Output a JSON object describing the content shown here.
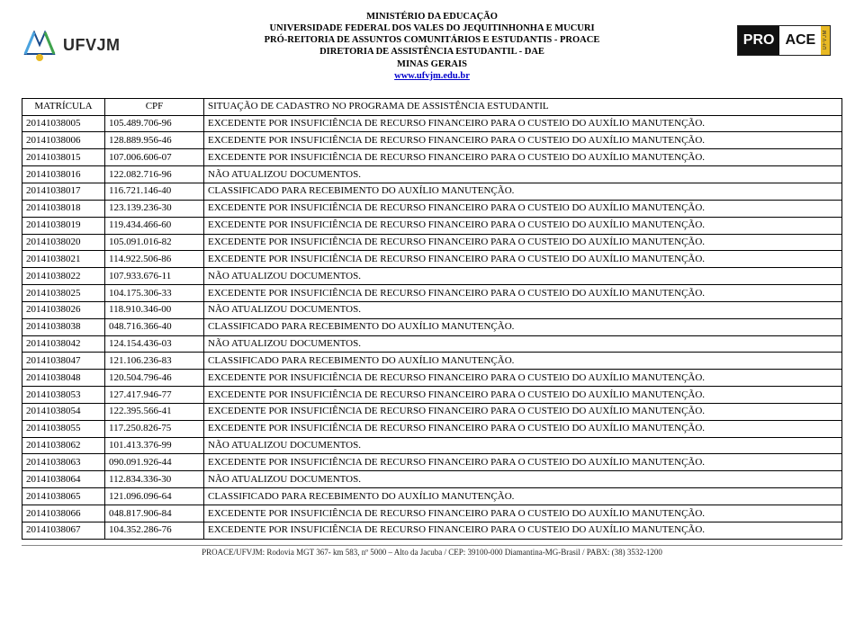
{
  "header": {
    "lines": [
      "MINISTÉRIO DA EDUCAÇÃO",
      "UNIVERSIDADE FEDERAL DOS VALES DO JEQUITINHONHA E MUCURI",
      "PRÓ-REITORIA DE ASSUNTOS COMUNITÁRIOS E ESTUDANTIS - PROACE",
      "DIRETORIA DE ASSISTÊNCIA ESTUDANTIL - DAE",
      "MINAS GERAIS"
    ],
    "link_text": "www.ufvjm.edu.br",
    "logo_left_text": "UFVJM",
    "logo_right_pro": "PRO",
    "logo_right_ace": "ACE",
    "logo_right_bar": "UFVJM"
  },
  "table": {
    "columns": [
      "MATRÍCULA",
      "CPF",
      "SITUAÇÃO DE CADASTRO NO PROGRAMA DE ASSISTÊNCIA ESTUDANTIL"
    ],
    "rows": [
      [
        "20141038005",
        "105.489.706-96",
        "EXCEDENTE POR INSUFICIÊNCIA DE RECURSO FINANCEIRO PARA O CUSTEIO DO AUXÍLIO MANUTENÇÃO."
      ],
      [
        "20141038006",
        "128.889.956-46",
        "EXCEDENTE POR INSUFICIÊNCIA DE RECURSO FINANCEIRO PARA O CUSTEIO DO AUXÍLIO MANUTENÇÃO."
      ],
      [
        "20141038015",
        "107.006.606-07",
        "EXCEDENTE POR INSUFICIÊNCIA DE RECURSO FINANCEIRO PARA O CUSTEIO DO AUXÍLIO MANUTENÇÃO."
      ],
      [
        "20141038016",
        "122.082.716-96",
        "NÃO ATUALIZOU DOCUMENTOS."
      ],
      [
        "20141038017",
        "116.721.146-40",
        "CLASSIFICADO PARA RECEBIMENTO DO AUXÍLIO MANUTENÇÃO."
      ],
      [
        "20141038018",
        "123.139.236-30",
        "EXCEDENTE POR INSUFICIÊNCIA DE RECURSO FINANCEIRO PARA O CUSTEIO DO AUXÍLIO MANUTENÇÃO."
      ],
      [
        "20141038019",
        "119.434.466-60",
        "EXCEDENTE POR INSUFICIÊNCIA DE RECURSO FINANCEIRO PARA O CUSTEIO DO AUXÍLIO MANUTENÇÃO."
      ],
      [
        "20141038020",
        "105.091.016-82",
        "EXCEDENTE POR INSUFICIÊNCIA DE RECURSO FINANCEIRO PARA O CUSTEIO DO AUXÍLIO MANUTENÇÃO."
      ],
      [
        "20141038021",
        "114.922.506-86",
        "EXCEDENTE POR INSUFICIÊNCIA DE RECURSO FINANCEIRO PARA O CUSTEIO DO AUXÍLIO MANUTENÇÃO."
      ],
      [
        "20141038022",
        "107.933.676-11",
        "NÃO ATUALIZOU DOCUMENTOS."
      ],
      [
        "20141038025",
        "104.175.306-33",
        "EXCEDENTE POR INSUFICIÊNCIA DE RECURSO FINANCEIRO PARA O CUSTEIO DO AUXÍLIO MANUTENÇÃO."
      ],
      [
        "20141038026",
        "118.910.346-00",
        "NÃO ATUALIZOU DOCUMENTOS."
      ],
      [
        "20141038038",
        "048.716.366-40",
        "CLASSIFICADO PARA RECEBIMENTO DO AUXÍLIO MANUTENÇÃO."
      ],
      [
        "20141038042",
        "124.154.436-03",
        "NÃO ATUALIZOU DOCUMENTOS."
      ],
      [
        "20141038047",
        "121.106.236-83",
        "CLASSIFICADO PARA RECEBIMENTO DO AUXÍLIO MANUTENÇÃO."
      ],
      [
        "20141038048",
        "120.504.796-46",
        "EXCEDENTE POR INSUFICIÊNCIA DE RECURSO FINANCEIRO PARA O CUSTEIO DO AUXÍLIO MANUTENÇÃO."
      ],
      [
        "20141038053",
        "127.417.946-77",
        "EXCEDENTE POR INSUFICIÊNCIA DE RECURSO FINANCEIRO PARA O CUSTEIO DO AUXÍLIO MANUTENÇÃO."
      ],
      [
        "20141038054",
        "122.395.566-41",
        "EXCEDENTE POR INSUFICIÊNCIA DE RECURSO FINANCEIRO PARA O CUSTEIO DO AUXÍLIO MANUTENÇÃO."
      ],
      [
        "20141038055",
        "117.250.826-75",
        "EXCEDENTE POR INSUFICIÊNCIA DE RECURSO FINANCEIRO PARA O CUSTEIO DO AUXÍLIO MANUTENÇÃO."
      ],
      [
        "20141038062",
        "101.413.376-99",
        "NÃO ATUALIZOU DOCUMENTOS."
      ],
      [
        "20141038063",
        "090.091.926-44",
        "EXCEDENTE POR INSUFICIÊNCIA DE RECURSO FINANCEIRO PARA O CUSTEIO DO AUXÍLIO MANUTENÇÃO."
      ],
      [
        "20141038064",
        "112.834.336-30",
        "NÃO ATUALIZOU DOCUMENTOS."
      ],
      [
        "20141038065",
        "121.096.096-64",
        "CLASSIFICADO PARA RECEBIMENTO DO AUXÍLIO MANUTENÇÃO."
      ],
      [
        "20141038066",
        "048.817.906-84",
        "EXCEDENTE POR INSUFICIÊNCIA DE RECURSO FINANCEIRO PARA O CUSTEIO DO AUXÍLIO MANUTENÇÃO."
      ],
      [
        "20141038067",
        "104.352.286-76",
        "EXCEDENTE POR INSUFICIÊNCIA DE RECURSO FINANCEIRO PARA O CUSTEIO DO AUXÍLIO MANUTENÇÃO."
      ]
    ]
  },
  "footer": {
    "text": "PROACE/UFVJM: Rodovia MGT 367- km 583, nº 5000 – Alto da Jacuba / CEP: 39100-000 Diamantina-MG-Brasil / PABX: (38) 3532-1200"
  }
}
